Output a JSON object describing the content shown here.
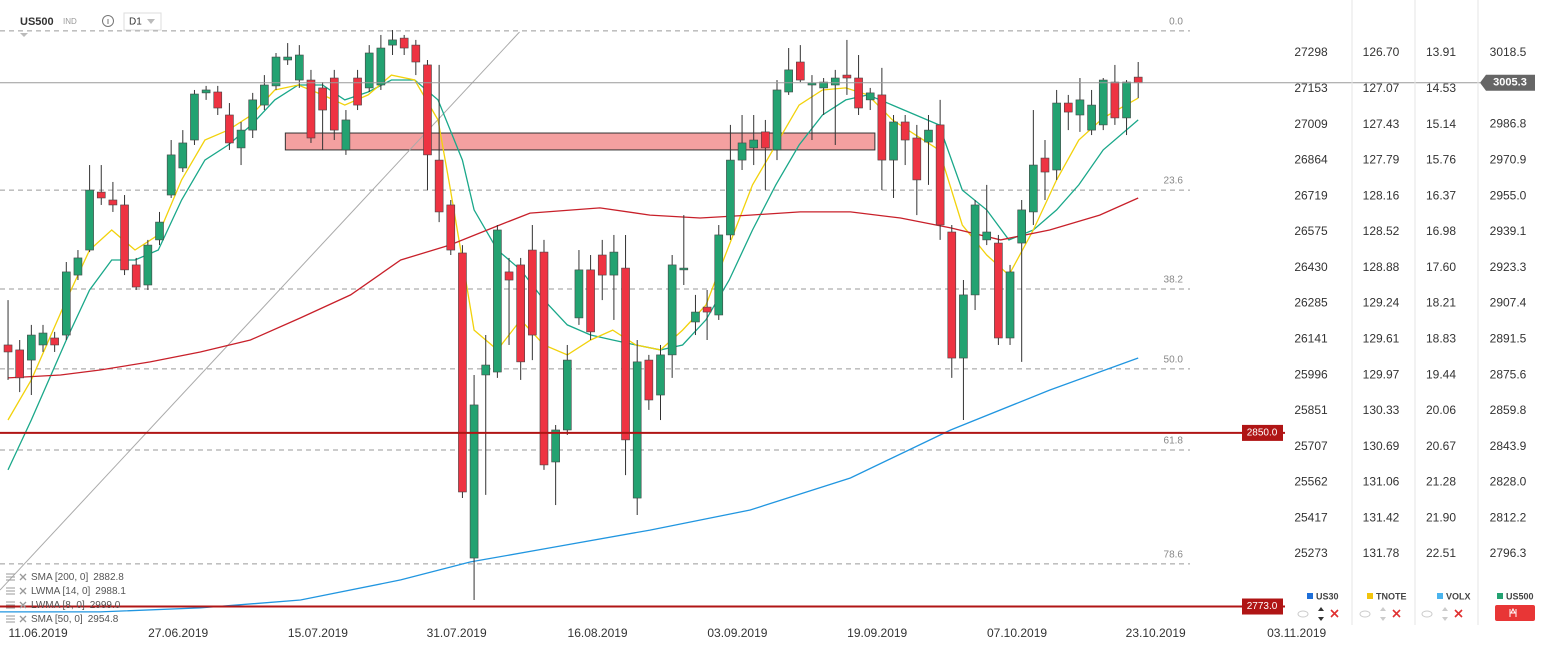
{
  "toolbar": {
    "symbol": "US500",
    "class": "IND",
    "timeframe": "D1"
  },
  "chart_data": {
    "type": "candlestick",
    "up_color": "#23a271",
    "down_color": "#ee3342",
    "open": [
      2889.0,
      2886.8,
      2882.3,
      2889.0,
      2892.1,
      2893.4,
      2920.0,
      2931.1,
      2956.8,
      2953.3,
      2951.1,
      2924.5,
      2915.6,
      2935.6,
      2955.5,
      2967.5,
      2979.9,
      3000.8,
      3001.2,
      2991.0,
      2976.4,
      2984.3,
      2995.4,
      3003.9,
      3015.4,
      3006.5,
      3006.5,
      3003.0,
      3007.4,
      2975.5,
      3007.4,
      3003.0,
      3004.3,
      3022.0,
      3025.1,
      3022.0,
      3013.2,
      2971.0,
      2951.1,
      2929.8,
      2794.5,
      2875.7,
      2877.0,
      2921.4,
      2924.5,
      2931.1,
      2930.2,
      2837.1,
      2851.3,
      2901.0,
      2922.3,
      2928.9,
      2920.0,
      2923.1,
      2821.1,
      2882.3,
      2866.8,
      2884.6,
      2922.3,
      2899.2,
      2905.8,
      2902.3,
      2937.8,
      2971.0,
      2976.4,
      2983.5,
      2975.5,
      3001.2,
      3014.5,
      3004.3,
      3003.0,
      3004.3,
      3008.7,
      3007.4,
      2997.7,
      2999.9,
      2971.0,
      2987.9,
      2980.8,
      2979.0,
      2986.6,
      2939.1,
      2883.2,
      2911.2,
      2935.6,
      2934.2,
      2892.1,
      2934.2,
      2948.0,
      2971.9,
      2966.6,
      2996.3,
      2991.0,
      2984.3,
      2986.6,
      3005.6,
      2989.7,
      3007.8
    ],
    "high": [
      2908.9,
      2891.2,
      2897.9,
      2897.9,
      2894.8,
      2925.8,
      2931.1,
      2968.8,
      2968.8,
      2961.3,
      2955.5,
      2927.6,
      2935.6,
      2948.0,
      2979.9,
      2984.3,
      3002.1,
      3003.9,
      3003.9,
      2996.3,
      2987.9,
      3000.8,
      3008.7,
      3018.5,
      3022.9,
      3022.0,
      3011.0,
      3005.6,
      3011.0,
      2993.2,
      3011.0,
      3022.0,
      3026.5,
      3028.7,
      3026.5,
      3024.3,
      3015.4,
      3013.2,
      2953.3,
      2933.3,
      2875.7,
      2893.4,
      2942.2,
      2927.6,
      2927.6,
      2942.2,
      2935.6,
      2853.5,
      2889.0,
      2931.1,
      2928.9,
      2935.6,
      2937.8,
      2937.8,
      2891.2,
      2884.6,
      2889.0,
      2928.9,
      2946.6,
      2911.2,
      2913.4,
      2942.2,
      2986.6,
      2991.0,
      2991.0,
      2988.8,
      3006.5,
      3020.7,
      3022.0,
      3008.7,
      3007.4,
      3011.0,
      3024.3,
      3017.6,
      3003.0,
      3011.9,
      2991.0,
      2991.0,
      2986.6,
      2991.0,
      2997.7,
      2942.2,
      2917.8,
      2953.3,
      2960.0,
      2937.8,
      2924.5,
      2953.3,
      2993.2,
      2979.9,
      3002.1,
      2999.9,
      3007.4,
      3002.1,
      3007.4,
      3013.2,
      3006.5,
      3014.5
    ],
    "low": [
      2873.5,
      2868.1,
      2866.8,
      2885.9,
      2885.9,
      2891.2,
      2917.8,
      2930.2,
      2951.1,
      2948.0,
      2920.0,
      2913.4,
      2913.4,
      2933.3,
      2954.2,
      2965.7,
      2977.7,
      2997.7,
      2991.0,
      2975.5,
      2968.8,
      2980.8,
      2993.2,
      3002.1,
      3013.2,
      3003.0,
      2978.6,
      2975.5,
      2979.9,
      2973.3,
      2993.2,
      3001.2,
      3002.1,
      3017.6,
      3017.6,
      3008.7,
      2957.7,
      2943.5,
      2928.9,
      2821.1,
      2775.9,
      2822.5,
      2874.4,
      2889.0,
      2873.5,
      2882.3,
      2833.6,
      2818.0,
      2849.1,
      2897.9,
      2891.2,
      2908.9,
      2900.1,
      2831.3,
      2813.6,
      2860.2,
      2855.7,
      2874.4,
      2915.6,
      2893.4,
      2891.2,
      2900.1,
      2935.6,
      2966.6,
      2968.8,
      2957.7,
      2971.0,
      2999.9,
      3005.6,
      2979.9,
      2991.0,
      2977.7,
      2999.9,
      2991.0,
      2993.2,
      2957.7,
      2954.2,
      2968.8,
      2946.6,
      2960.0,
      2935.6,
      2874.4,
      2855.7,
      2904.5,
      2933.3,
      2889.0,
      2889.0,
      2881.5,
      2942.2,
      2953.3,
      2962.2,
      2984.3,
      2983.5,
      2982.1,
      2984.3,
      2986.6,
      2982.1,
      2998.5
    ],
    "close": [
      2885.9,
      2874.4,
      2893.4,
      2894.3,
      2889.0,
      2921.4,
      2927.6,
      2957.7,
      2954.2,
      2951.1,
      2922.3,
      2914.7,
      2933.3,
      2943.5,
      2973.3,
      2978.6,
      3000.3,
      3002.1,
      2994.1,
      2978.6,
      2984.3,
      2997.7,
      3004.3,
      3016.7,
      3016.7,
      3017.6,
      2980.8,
      2993.2,
      2984.3,
      2988.8,
      2995.4,
      3018.5,
      3020.7,
      3024.3,
      3020.7,
      3014.5,
      2973.3,
      2948.0,
      2931.1,
      2823.8,
      2862.4,
      2880.1,
      2940.0,
      2917.8,
      2881.5,
      2893.4,
      2835.8,
      2851.3,
      2882.3,
      2922.3,
      2894.8,
      2920.0,
      2930.2,
      2846.9,
      2881.5,
      2864.6,
      2884.6,
      2924.5,
      2923.1,
      2903.6,
      2903.6,
      2937.8,
      2971.0,
      2978.6,
      2979.9,
      2976.4,
      3002.1,
      3011.0,
      3006.5,
      3005.2,
      3005.6,
      3007.4,
      3007.4,
      2994.1,
      3000.8,
      2971.0,
      2987.9,
      2979.9,
      2962.2,
      2984.3,
      2942.2,
      2883.2,
      2911.2,
      2951.1,
      2939.1,
      2892.1,
      2921.4,
      2948.9,
      2968.8,
      2965.7,
      2996.3,
      2992.3,
      2997.7,
      2995.4,
      3006.5,
      2989.7,
      3005.6,
      3005.3
    ],
    "xlim": [
      -0.69,
      109.6
    ],
    "ylim": [
      2764.8,
      3042.0
    ],
    "xticks": [
      {
        "value": 2.58,
        "label": "11.06.2019"
      },
      {
        "value": 14.6,
        "label": "27.06.2019"
      },
      {
        "value": 26.6,
        "label": "15.07.2019"
      },
      {
        "value": 38.5,
        "label": "31.07.2019"
      },
      {
        "value": 50.6,
        "label": "16.08.2019"
      },
      {
        "value": 62.6,
        "label": "03.09.2019"
      },
      {
        "value": 74.6,
        "label": "19.09.2019"
      },
      {
        "value": 86.6,
        "label": "07.10.2019"
      },
      {
        "value": 98.5,
        "label": "23.10.2019"
      },
      {
        "value": 110.6,
        "label": "03.11.2019"
      }
    ],
    "yticks": [
      {
        "value": 3018.5,
        "label": "3018.5"
      },
      {
        "value": 2986.8,
        "label": "2986.8"
      },
      {
        "value": 2970.9,
        "label": "2970.9"
      },
      {
        "value": 2955.0,
        "label": "2955.0"
      },
      {
        "value": 2939.1,
        "label": "2939.1"
      },
      {
        "value": 2923.3,
        "label": "2923.3"
      },
      {
        "value": 2907.4,
        "label": "2907.4"
      },
      {
        "value": 2891.5,
        "label": "2891.5"
      },
      {
        "value": 2875.6,
        "label": "2875.6"
      },
      {
        "value": 2859.8,
        "label": "2859.8"
      },
      {
        "value": 2843.9,
        "label": "2843.9"
      },
      {
        "value": 2828.0,
        "label": "2828.0"
      },
      {
        "value": 2812.2,
        "label": "2812.2"
      },
      {
        "value": 2796.3,
        "label": "2796.3"
      }
    ],
    "series": [
      {
        "name": "SMA [200, 0]",
        "last": "2882.8",
        "color": "#2196e0",
        "x": [
          -0.7,
          7.9,
          16.5,
          25.1,
          33.7,
          39.7,
          46.5,
          55.1,
          63.7,
          72.3,
          80.9,
          89.4,
          97.0
        ],
        "values": [
          2770.6,
          2770.6,
          2772.4,
          2775.9,
          2784.8,
          2792.8,
          2799.0,
          2806.9,
          2815.8,
          2830.0,
          2851.3,
          2869.0,
          2883.2
        ]
      },
      {
        "name": "LWMA [14, 0]",
        "last": "2988.1",
        "color": "#1aa88a",
        "x": [
          0,
          2.0,
          5.0,
          7.0,
          8.9,
          10.9,
          12.9,
          14.9,
          16.9,
          18.9,
          20.9,
          22.9,
          24.9,
          27.0,
          28.9,
          30.9,
          32.9,
          34.9,
          36.9,
          39.0,
          40.0,
          42.0,
          44.0,
          46.0,
          48.0,
          50.0,
          51.9,
          53.9,
          56.0,
          57.9,
          59.9,
          61.9,
          63.9,
          65.9,
          67.9,
          69.9,
          71.9,
          73.8,
          75.9,
          77.9,
          79.9,
          81.9,
          84.0,
          85.9,
          88.0,
          90.0,
          91.9,
          94.0,
          97.0
        ],
        "values": [
          2833.6,
          2855.7,
          2891.2,
          2913.4,
          2926.7,
          2926.7,
          2931.1,
          2953.3,
          2971.0,
          2977.7,
          2986.6,
          2997.7,
          3004.3,
          3004.3,
          2997.7,
          3001.2,
          3006.5,
          3006.5,
          2997.7,
          2971.0,
          2948.9,
          2931.1,
          2922.3,
          2908.9,
          2897.9,
          2893.4,
          2891.2,
          2889.0,
          2886.8,
          2889.0,
          2900.1,
          2917.8,
          2940.0,
          2960.0,
          2977.7,
          2991.0,
          2997.7,
          2999.9,
          2995.4,
          2991.0,
          2986.6,
          2957.7,
          2948.9,
          2935.6,
          2940.0,
          2948.9,
          2960.0,
          2975.5,
          2988.8
        ]
      },
      {
        "name": "LWMA [8, 0]",
        "last": "2999.0",
        "color": "#f2d20c",
        "x": [
          0,
          2.0,
          5.0,
          7.0,
          8.9,
          10.9,
          12.9,
          14.9,
          16.9,
          18.9,
          20.9,
          22.9,
          24.9,
          27.0,
          28.9,
          30.9,
          32.9,
          34.9,
          36.9,
          37.9,
          39.0,
          40.0,
          42.0,
          44.0,
          46.0,
          48.0,
          50.0,
          51.9,
          53.9,
          56.0,
          57.9,
          59.9,
          61.9,
          63.9,
          65.9,
          67.9,
          69.9,
          71.9,
          73.8,
          75.9,
          77.9,
          79.9,
          81.9,
          84.0,
          85.9,
          88.0,
          90.0,
          91.9,
          94.0,
          97.0
        ],
        "values": [
          2855.7,
          2873.5,
          2908.9,
          2931.1,
          2940.0,
          2931.1,
          2937.8,
          2962.2,
          2979.9,
          2984.3,
          2991.0,
          3002.1,
          3004.3,
          2999.9,
          2995.4,
          2999.9,
          3008.7,
          3006.5,
          2988.8,
          2960.0,
          2926.7,
          2895.6,
          2886.8,
          2900.1,
          2889.0,
          2884.6,
          2891.2,
          2895.6,
          2889.0,
          2886.8,
          2895.6,
          2906.7,
          2933.3,
          2960.0,
          2977.7,
          2995.4,
          3002.1,
          3003.0,
          2999.9,
          2988.8,
          2982.1,
          2975.5,
          2942.2,
          2928.9,
          2920.0,
          2940.0,
          2962.2,
          2979.9,
          2989.7,
          2998.5
        ]
      },
      {
        "name": "SMA [50, 0]",
        "last": "2954.8",
        "color": "#c8202a",
        "x": [
          0,
          4.5,
          7.9,
          12.2,
          16.5,
          20.8,
          25.1,
          29.4,
          33.7,
          37.9,
          42.2,
          44.8,
          50.8,
          55.1,
          59.4,
          63.7,
          68.0,
          72.3,
          76.6,
          80.9,
          85.2,
          89.4,
          93.7,
          97.0
        ],
        "values": [
          2874.4,
          2875.7,
          2877.9,
          2881.5,
          2885.9,
          2891.2,
          2901.0,
          2911.2,
          2926.7,
          2933.3,
          2942.2,
          2947.5,
          2949.8,
          2946.6,
          2945.3,
          2946.6,
          2948.0,
          2948.0,
          2945.3,
          2940.9,
          2935.6,
          2940.0,
          2946.6,
          2954.2
        ]
      }
    ],
    "fibonacci": [
      {
        "value": 3028.3,
        "label": "0.0"
      },
      {
        "value": 2957.7,
        "label": "23.6"
      },
      {
        "value": 2913.8,
        "label": "38.2"
      },
      {
        "value": 2878.4,
        "label": "50.0"
      },
      {
        "value": 2842.4,
        "label": "61.8"
      },
      {
        "value": 2791.9,
        "label": "78.6"
      }
    ],
    "zone": {
      "x": [
        23.8,
        74.4
      ],
      "y": [
        2975.5,
        2983.0
      ],
      "color": "#f08080"
    },
    "trendline": {
      "x": [
        -0.69,
        43.9
      ],
      "y": [
        2780.3,
        3027.8
      ],
      "color": "#aaaaaa"
    },
    "levels": [
      {
        "value": 2850.0,
        "label": "2850.0",
        "color": "#b01515"
      },
      {
        "value": 2773.0,
        "label": "2773.0",
        "color": "#b01515"
      }
    ],
    "current_price": {
      "value": 3005.3,
      "label": "3005.3",
      "color": "#666666"
    }
  },
  "scales": [
    {
      "name": "US30",
      "color": "#1e6fd9",
      "labels": [
        "27298",
        "27153",
        "27009",
        "26864",
        "26719",
        "26575",
        "26430",
        "26285",
        "26141",
        "25996",
        "25851",
        "25707",
        "25562",
        "25417",
        "25273"
      ]
    },
    {
      "name": "TNOTE",
      "color": "#f2c40c",
      "labels": [
        "126.70",
        "127.07",
        "127.43",
        "127.79",
        "128.16",
        "128.52",
        "128.88",
        "129.24",
        "129.61",
        "129.97",
        "130.33",
        "130.69",
        "131.06",
        "131.42",
        "131.78"
      ]
    },
    {
      "name": "VOLX",
      "color": "#4ab4ee",
      "labels": [
        "13.91",
        "14.53",
        "15.14",
        "15.76",
        "16.37",
        "16.98",
        "17.60",
        "18.21",
        "18.83",
        "19.44",
        "20.06",
        "20.67",
        "21.28",
        "21.90",
        "22.51"
      ]
    },
    {
      "name": "US500",
      "color": "#23a271"
    }
  ]
}
